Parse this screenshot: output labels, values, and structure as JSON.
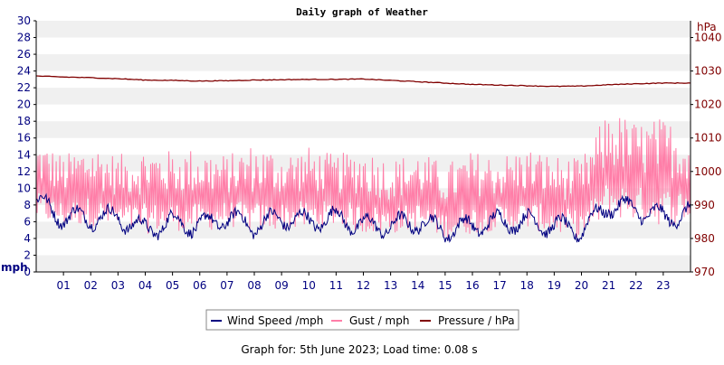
{
  "chart_data": {
    "type": "line",
    "title": "Daily graph of Weather",
    "footer": "Graph for: 5th June 2023; Load time: 0.08 s",
    "x_axis": {
      "ticks": [
        "01",
        "02",
        "03",
        "04",
        "05",
        "06",
        "07",
        "08",
        "09",
        "10",
        "11",
        "12",
        "13",
        "14",
        "15",
        "16",
        "17",
        "18",
        "19",
        "20",
        "21",
        "22",
        "23"
      ],
      "range_hours": [
        0,
        24
      ]
    },
    "y_left": {
      "unit": "mph",
      "range": [
        0,
        30
      ],
      "ticks": [
        "0",
        "2",
        "4",
        "6",
        "8",
        "10",
        "12",
        "14",
        "16",
        "18",
        "20",
        "22",
        "24",
        "26",
        "28",
        "30"
      ]
    },
    "y_right": {
      "unit": "hPa",
      "range": [
        970,
        1045
      ],
      "ticks": [
        "970",
        "980",
        "990",
        "1000",
        "1010",
        "1020",
        "1030",
        "1040"
      ]
    },
    "grid": "alternating horizontal bands",
    "legend": {
      "placement": "bottom-center",
      "items": [
        {
          "label": "Wind Speed /mph",
          "color": "#000080"
        },
        {
          "label": "Gust / mph",
          "color": "#ff7ea8"
        },
        {
          "label": "Pressure / hPa",
          "color": "#800000"
        }
      ]
    },
    "series": [
      {
        "name": "Wind Speed /mph",
        "axis": "left",
        "color": "#000080",
        "x": [
          0,
          1,
          2,
          3,
          4,
          5,
          6,
          7,
          8,
          9,
          10,
          11,
          12,
          13,
          14,
          15,
          16,
          17,
          18,
          19,
          20,
          21,
          22,
          23,
          24
        ],
        "y": [
          8.5,
          6.5,
          6.5,
          6.5,
          5,
          6,
          5.5,
          6.5,
          5.5,
          6.5,
          6,
          6.5,
          5.5,
          5.5,
          6,
          5,
          5.5,
          6,
          6,
          5.5,
          5,
          8,
          7.5,
          6.5,
          7
        ]
      },
      {
        "name": "Gust / mph",
        "axis": "left",
        "color": "#ff7ea8",
        "x": [
          0,
          1,
          2,
          3,
          4,
          5,
          6,
          7,
          8,
          9,
          10,
          11,
          12,
          13,
          14,
          15,
          16,
          17,
          18,
          19,
          20,
          21,
          22,
          23,
          24
        ],
        "y_low": [
          6,
          5.5,
          5.5,
          5,
          4.5,
          5,
          4.5,
          5.5,
          4.5,
          5,
          5,
          5.5,
          4.5,
          4.5,
          5,
          4,
          4.5,
          5,
          5,
          4.5,
          4,
          6.5,
          6,
          5.5,
          6
        ],
        "y_high": [
          16,
          14,
          15.5,
          14,
          15,
          14.5,
          15,
          14,
          15.5,
          14.5,
          15,
          14,
          15,
          13.5,
          14.5,
          13,
          14.5,
          14,
          15,
          14,
          13.5,
          19.5,
          18,
          18.5,
          17
        ]
      },
      {
        "name": "Pressure / hPa",
        "axis": "right",
        "color": "#800000",
        "x": [
          0,
          1,
          2,
          3,
          4,
          5,
          6,
          7,
          8,
          9,
          10,
          11,
          12,
          13,
          14,
          15,
          16,
          17,
          18,
          19,
          20,
          21,
          22,
          23,
          24
        ],
        "y": [
          1028.5,
          1028.2,
          1028,
          1027.7,
          1027.3,
          1027.2,
          1027,
          1027.1,
          1027.3,
          1027.4,
          1027.5,
          1027.5,
          1027.6,
          1027.2,
          1026.8,
          1026.4,
          1026,
          1025.8,
          1025.6,
          1025.4,
          1025.5,
          1025.9,
          1026.2,
          1026.4,
          1026.4
        ]
      }
    ]
  }
}
